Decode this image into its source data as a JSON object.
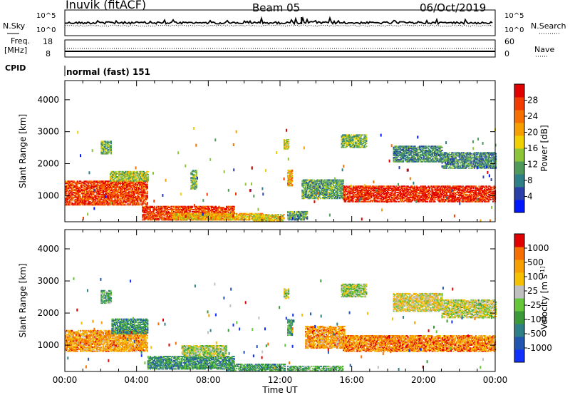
{
  "header": {
    "radar": "Inuvik (fitACF)",
    "beam": "Beam 05",
    "date": "06/Oct/2019"
  },
  "noise_panel": {
    "left_label": "N.Sky",
    "right_label": "N.Search",
    "left_ticks": [
      "10^5",
      "10^0"
    ],
    "right_ticks": [
      "10^5",
      "10^0"
    ]
  },
  "freq_panel": {
    "left_label_1": "Freq.",
    "left_label_2": "[MHz]",
    "right_label": "Nave",
    "left_ticks": [
      "18",
      "8"
    ],
    "right_ticks": [
      "60",
      "0"
    ]
  },
  "cpid": {
    "label": "CPID",
    "value": "normal (fast) 151"
  },
  "chart_data": [
    {
      "type": "heatmap",
      "name": "power",
      "ylabel": "Slant Range [km]",
      "ylim": [
        180,
        4600
      ],
      "yticks": [
        "4000",
        "3000",
        "2000",
        "1000"
      ],
      "colorbar_label": "Power [dB]",
      "colorbar_ticks": [
        "28",
        "24",
        "20",
        "16",
        "12",
        "8",
        "4"
      ],
      "colors": [
        "#0018ff",
        "#2b3fa8",
        "#2f7f86",
        "#4f9a5a",
        "#8cc43a",
        "#f0d000",
        "#f5a000",
        "#f57000",
        "#f23b00",
        "#e00000"
      ],
      "regions": [
        {
          "t": [
            0.0,
            4.6
          ],
          "r": [
            700,
            1450
          ],
          "level": 0.85
        },
        {
          "t": [
            2.5,
            4.6
          ],
          "r": [
            1450,
            1750
          ],
          "level": 0.45
        },
        {
          "t": [
            4.3,
            9.4
          ],
          "r": [
            230,
            650
          ],
          "level": 0.85
        },
        {
          "t": [
            6.0,
            11.0
          ],
          "r": [
            230,
            450
          ],
          "level": 0.6
        },
        {
          "t": [
            10.5,
            12.2
          ],
          "r": [
            200,
            420
          ],
          "level": 0.55
        },
        {
          "t": [
            12.4,
            13.5
          ],
          "r": [
            230,
            500
          ],
          "level": 0.35
        },
        {
          "t": [
            13.2,
            15.5
          ],
          "r": [
            900,
            1500
          ],
          "level": 0.35
        },
        {
          "t": [
            15.5,
            24.0
          ],
          "r": [
            800,
            1300
          ],
          "level": 0.9
        },
        {
          "t": [
            15.4,
            16.8
          ],
          "r": [
            2500,
            2900
          ],
          "level": 0.4
        },
        {
          "t": [
            18.3,
            21.0
          ],
          "r": [
            2050,
            2550
          ],
          "level": 0.3
        },
        {
          "t": [
            21.0,
            24.0
          ],
          "r": [
            1850,
            2350
          ],
          "level": 0.3
        },
        {
          "t": [
            12.4,
            12.7
          ],
          "r": [
            1300,
            1800
          ],
          "level": 0.65
        },
        {
          "t": [
            7.0,
            7.3
          ],
          "r": [
            1200,
            1800
          ],
          "level": 0.4
        },
        {
          "t": [
            12.2,
            12.5
          ],
          "r": [
            2450,
            2750
          ],
          "level": 0.5
        },
        {
          "t": [
            2.0,
            2.6
          ],
          "r": [
            2300,
            2700
          ],
          "level": 0.4
        }
      ]
    },
    {
      "type": "heatmap",
      "name": "velocity",
      "xlabel": "Time UT",
      "ylabel": "Slant Range [km]",
      "ylim": [
        180,
        4600
      ],
      "xlim": [
        0,
        24
      ],
      "xticks": [
        "00:00",
        "04:00",
        "08:00",
        "12:00",
        "16:00",
        "20:00",
        "00:00"
      ],
      "yticks": [
        "4000",
        "3000",
        "2000",
        "1000"
      ],
      "colorbar_label": "Velocity [m s^-1]",
      "colorbar_ticks": [
        "1000",
        "500",
        "100",
        "25",
        "-25",
        "-100",
        "-500",
        "-1000"
      ],
      "colors": [
        "#1030ff",
        "#2255b0",
        "#2f7f86",
        "#3a9a3a",
        "#66c63a",
        "#c0c0c0",
        "#f5c000",
        "#f5a000",
        "#f57000",
        "#e00000"
      ],
      "regions": [
        {
          "t": [
            0.0,
            4.6
          ],
          "r": [
            800,
            1450
          ],
          "level": 0.75
        },
        {
          "t": [
            2.6,
            4.6
          ],
          "r": [
            1350,
            1800
          ],
          "level": 0.3
        },
        {
          "t": [
            4.6,
            9.4
          ],
          "r": [
            250,
            650
          ],
          "level": 0.3
        },
        {
          "t": [
            6.5,
            9.0
          ],
          "r": [
            650,
            1000
          ],
          "level": 0.5
        },
        {
          "t": [
            9.0,
            12.3
          ],
          "r": [
            200,
            400
          ],
          "level": 0.35
        },
        {
          "t": [
            12.4,
            15.5
          ],
          "r": [
            200,
            330
          ],
          "level": 0.4
        },
        {
          "t": [
            13.4,
            15.6
          ],
          "r": [
            900,
            1600
          ],
          "level": 0.75
        },
        {
          "t": [
            15.5,
            24.0
          ],
          "r": [
            800,
            1300
          ],
          "level": 0.8
        },
        {
          "t": [
            15.4,
            16.8
          ],
          "r": [
            2500,
            2900
          ],
          "level": 0.5
        },
        {
          "t": [
            18.3,
            21.0
          ],
          "r": [
            2050,
            2600
          ],
          "level": 0.6
        },
        {
          "t": [
            21.0,
            24.0
          ],
          "r": [
            1850,
            2400
          ],
          "level": 0.55
        },
        {
          "t": [
            12.4,
            12.7
          ],
          "r": [
            1300,
            1800
          ],
          "level": 0.35
        },
        {
          "t": [
            12.2,
            12.5
          ],
          "r": [
            2450,
            2750
          ],
          "level": 0.5
        },
        {
          "t": [
            2.0,
            2.6
          ],
          "r": [
            2300,
            2700
          ],
          "level": 0.4
        }
      ]
    }
  ]
}
